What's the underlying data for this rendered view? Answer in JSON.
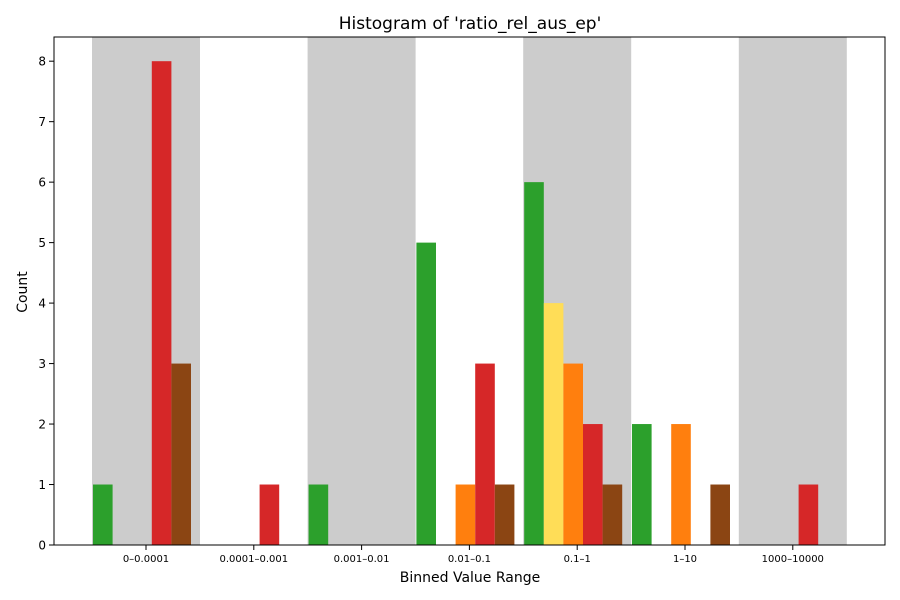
{
  "chart_data": {
    "type": "bar",
    "title": "Histogram of 'ratio_rel_aus_ep'",
    "xlabel": "Binned Value Range",
    "ylabel": "Count",
    "ylim": [
      0,
      8.4
    ],
    "yticks": [
      0,
      1,
      2,
      3,
      4,
      5,
      6,
      7,
      8
    ],
    "categories": [
      "0–0.0001",
      "0.0001–0.001",
      "0.001–0.01",
      "0.01–0.1",
      "0.1–1",
      "1–10",
      "1000–10000"
    ],
    "shaded_categories": [
      0,
      2,
      4,
      6
    ],
    "grid": false,
    "legend": "none",
    "colors": [
      "#2ca02c",
      "#ffdd57",
      "#ff7f0e",
      "#d62728",
      "#8b4513"
    ],
    "series": [
      {
        "color": "#2ca02c",
        "values": [
          1,
          0,
          1,
          5,
          6,
          2,
          0
        ]
      },
      {
        "color": "#ffdd57",
        "values": [
          0,
          0,
          0,
          0,
          4,
          0,
          0
        ]
      },
      {
        "color": "#ff7f0e",
        "values": [
          0,
          0,
          0,
          1,
          3,
          2,
          0
        ]
      },
      {
        "color": "#d62728",
        "values": [
          8,
          1,
          0,
          3,
          2,
          0,
          1
        ]
      },
      {
        "color": "#8b4513",
        "values": [
          3,
          0,
          0,
          1,
          1,
          1,
          0
        ]
      }
    ]
  }
}
